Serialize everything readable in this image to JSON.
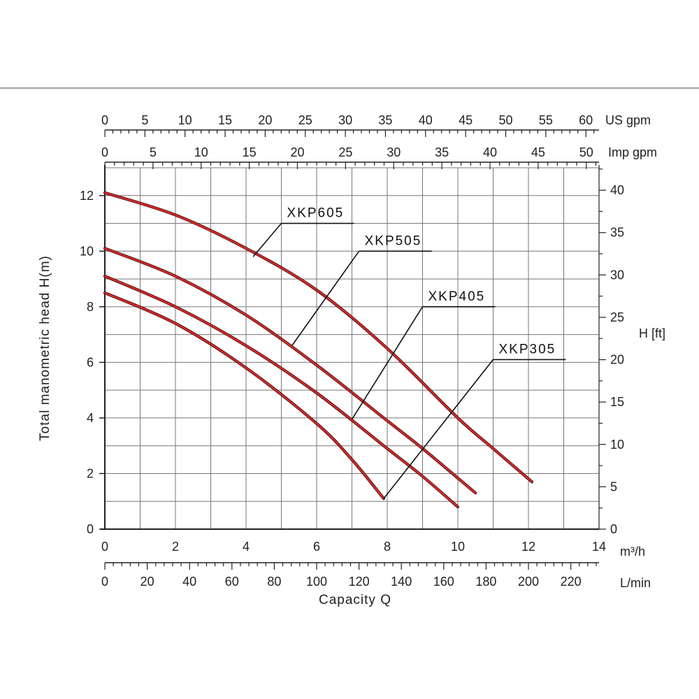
{
  "chart_data": {
    "type": "line",
    "title": "",
    "xlabel": "Capacity Q",
    "ylabel": "Total manometric head H(m)",
    "y2label": "H [ft]",
    "xunit": "m³/h",
    "xlim": [
      0,
      14
    ],
    "ylim": [
      0,
      13
    ],
    "x_ticks": [
      "0",
      "2",
      "4",
      "6",
      "8",
      "10",
      "12",
      "14"
    ],
    "y_ticks": [
      "0",
      "2",
      "4",
      "6",
      "8",
      "10",
      "12"
    ],
    "y2_ticks": [
      "0",
      "5",
      "10",
      "15",
      "20",
      "25",
      "30",
      "35",
      "40"
    ],
    "lmin_axis": {
      "unit": "L/min",
      "ticks": [
        "0",
        "20",
        "40",
        "60",
        "80",
        "100",
        "120",
        "140",
        "160",
        "180",
        "200",
        "220"
      ]
    },
    "us_gpm_axis": {
      "unit": "US gpm",
      "ticks": [
        "0",
        "5",
        "10",
        "15",
        "20",
        "25",
        "30",
        "35",
        "40",
        "45",
        "50",
        "55",
        "60"
      ]
    },
    "imp_gpm_axis": {
      "unit": "Imp gpm",
      "ticks": [
        "0",
        "5",
        "10",
        "15",
        "20",
        "25",
        "30",
        "35",
        "40",
        "45",
        "50"
      ]
    },
    "grid": true,
    "series": [
      {
        "name": "XKP605",
        "color": "#d42a2a",
        "x": [
          0,
          2,
          4,
          6,
          8,
          10,
          11,
          12.1
        ],
        "y": [
          12.1,
          11.3,
          10.1,
          8.6,
          6.5,
          4.0,
          2.9,
          1.7
        ],
        "leader_point": [
          4.2,
          9.8
        ],
        "label_anchor": [
          5.0,
          11.0
        ]
      },
      {
        "name": "XKP505",
        "color": "#d42a2a",
        "x": [
          0,
          2,
          4,
          6,
          8,
          9,
          10.5
        ],
        "y": [
          10.1,
          9.1,
          7.7,
          5.9,
          3.9,
          2.9,
          1.3
        ],
        "leader_point": [
          5.3,
          6.6
        ],
        "label_anchor": [
          7.2,
          10.0
        ]
      },
      {
        "name": "XKP405",
        "color": "#d42a2a",
        "x": [
          0,
          2,
          4,
          6,
          8,
          9,
          10
        ],
        "y": [
          9.1,
          8.0,
          6.6,
          4.9,
          2.9,
          1.9,
          0.8
        ],
        "leader_point": [
          7.0,
          3.95
        ],
        "label_anchor": [
          9.0,
          8.0
        ]
      },
      {
        "name": "XKP305",
        "color": "#d42a2a",
        "x": [
          0,
          2,
          4,
          6,
          7,
          7.9
        ],
        "y": [
          8.5,
          7.4,
          5.8,
          3.8,
          2.5,
          1.1
        ],
        "leader_point": [
          7.9,
          1.1
        ],
        "label_anchor": [
          11.0,
          6.1
        ]
      }
    ]
  }
}
